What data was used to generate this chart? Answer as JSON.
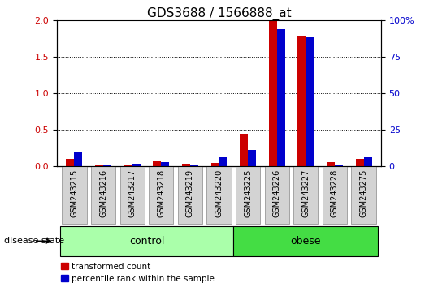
{
  "title": "GDS3688 / 1566888_at",
  "samples": [
    "GSM243215",
    "GSM243216",
    "GSM243217",
    "GSM243218",
    "GSM243219",
    "GSM243220",
    "GSM243225",
    "GSM243226",
    "GSM243227",
    "GSM243228",
    "GSM243275"
  ],
  "red_values": [
    0.1,
    0.02,
    0.02,
    0.07,
    0.04,
    0.05,
    0.45,
    2.0,
    1.78,
    0.06,
    0.1
  ],
  "blue_values_pct": [
    9.5,
    1.5,
    2.0,
    3.0,
    1.5,
    6.0,
    11.5,
    94.0,
    88.0,
    1.5,
    6.5
  ],
  "left_ylim": [
    0,
    2.0
  ],
  "left_yticks": [
    0,
    0.5,
    1.0,
    1.5,
    2.0
  ],
  "right_ylim": [
    0,
    100
  ],
  "right_yticks": [
    0,
    25,
    50,
    75,
    100
  ],
  "right_ylabels": [
    "0",
    "25",
    "50",
    "75",
    "100%"
  ],
  "groups": [
    {
      "label": "control",
      "start": 0,
      "end": 6,
      "color": "#aaffaa"
    },
    {
      "label": "obese",
      "start": 6,
      "end": 11,
      "color": "#44dd44"
    }
  ],
  "group_label": "disease state",
  "bar_width": 0.28,
  "red_color": "#cc0000",
  "blue_color": "#0000cc",
  "tick_label_fontsize": 7,
  "title_fontsize": 11,
  "background_color": "#ffffff",
  "legend_red": "transformed count",
  "legend_blue": "percentile rank within the sample"
}
